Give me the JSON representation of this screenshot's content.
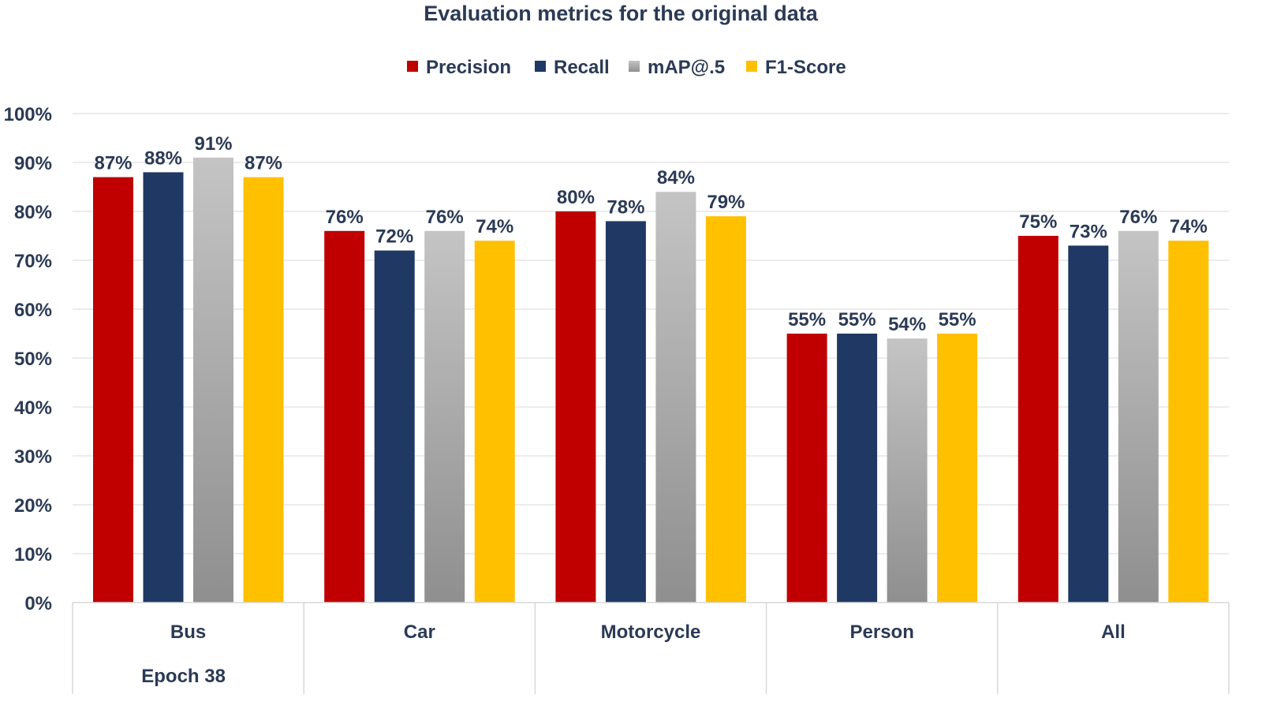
{
  "chart_data": {
    "type": "bar",
    "title": "Evaluation metrics for the original data",
    "categories": [
      "Bus",
      "Car",
      "Motorcycle",
      "Person",
      "All"
    ],
    "group_label": "Epoch 38",
    "series": [
      {
        "name": "Precision",
        "color": "#c00000",
        "values": [
          87,
          76,
          80,
          55,
          75
        ],
        "labels": [
          "87%",
          "76%",
          "80%",
          "55%",
          "75%"
        ]
      },
      {
        "name": "Recall",
        "color": "#203864",
        "values": [
          88,
          72,
          78,
          55,
          73
        ],
        "labels": [
          "88%",
          "72%",
          "78%",
          "55%",
          "73%"
        ]
      },
      {
        "name": "mAP@.5",
        "color": "#a6a6a6",
        "values": [
          91,
          76,
          84,
          54,
          76
        ],
        "labels": [
          "91%",
          "76%",
          "84%",
          "54%",
          "76%"
        ]
      },
      {
        "name": "F1-Score",
        "color": "#ffc000",
        "values": [
          87,
          74,
          79,
          55,
          74
        ],
        "labels": [
          "87%",
          "74%",
          "79%",
          "55%",
          "74%"
        ]
      }
    ],
    "ylim": [
      0,
      100
    ],
    "yticks": [
      "0%",
      "10%",
      "20%",
      "30%",
      "40%",
      "50%",
      "60%",
      "70%",
      "80%",
      "90%",
      "100%"
    ],
    "grid": true,
    "legend": "top-center",
    "xlabel": "",
    "ylabel": ""
  }
}
